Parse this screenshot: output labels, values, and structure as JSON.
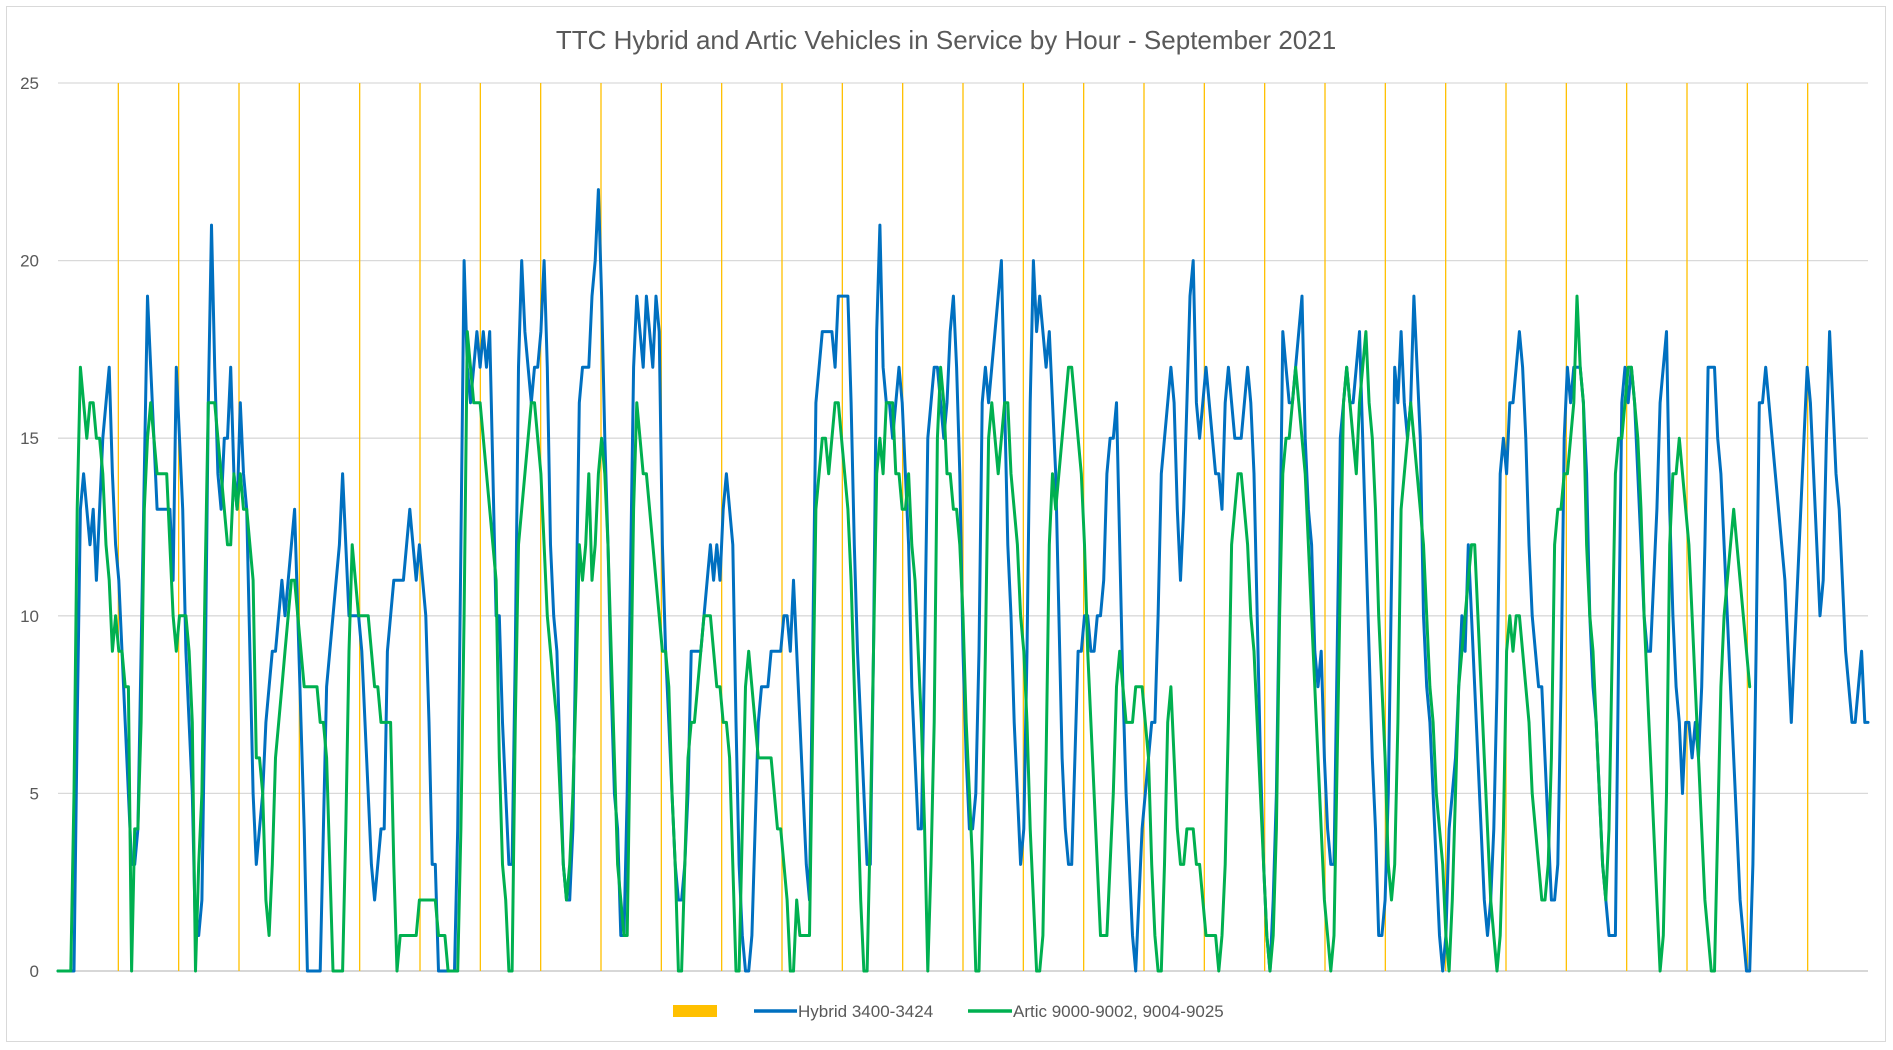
{
  "chart_data": {
    "type": "line",
    "title": "TTC Hybrid and Artic Vehicles in Service by Hour - September 2021",
    "xlabel": "",
    "ylabel": "",
    "ylim": [
      0,
      25
    ],
    "y_ticks": [
      0,
      5,
      10,
      15,
      20,
      25
    ],
    "grid": true,
    "legend_position": "bottom",
    "day_markers": {
      "name": "",
      "color": "#FFC000",
      "count": 29
    },
    "series": [
      {
        "name": "Hybrid 3400-3424",
        "color": "#0070C0",
        "values": [
          0,
          0,
          0,
          0,
          0,
          0,
          7,
          13,
          14,
          13,
          12,
          13,
          11,
          13,
          15,
          16,
          17,
          14,
          12,
          11,
          9,
          7,
          5,
          3,
          3,
          4,
          9,
          14,
          19,
          17,
          15,
          13,
          13,
          13,
          13,
          13,
          11,
          17,
          15,
          13,
          9,
          7,
          5,
          1,
          1,
          2,
          8,
          16,
          21,
          17,
          14,
          13,
          15,
          15,
          17,
          14,
          13,
          16,
          14,
          13,
          9,
          5,
          3,
          4,
          5,
          7,
          8,
          9,
          9,
          10,
          11,
          10,
          11,
          12,
          13,
          10,
          7,
          4,
          0,
          0,
          0,
          0,
          0,
          4,
          8,
          9,
          10,
          11,
          12,
          14,
          12,
          10,
          10,
          10,
          10,
          9,
          7,
          5,
          3,
          2,
          3,
          4,
          4,
          9,
          10,
          11,
          11,
          11,
          11,
          12,
          13,
          12,
          11,
          12,
          11,
          10,
          7,
          3,
          3,
          0,
          0,
          0,
          0,
          0,
          0,
          4,
          12,
          20,
          17,
          16,
          17,
          18,
          17,
          18,
          17,
          18,
          14,
          10,
          10,
          7,
          5,
          3,
          3,
          9,
          17,
          20,
          18,
          17,
          16,
          17,
          17,
          18,
          20,
          17,
          12,
          10,
          9,
          6,
          3,
          2,
          2,
          4,
          10,
          16,
          17,
          17,
          17,
          19,
          20,
          22,
          19,
          15,
          12,
          8,
          5,
          4,
          1,
          1,
          5,
          11,
          17,
          19,
          18,
          17,
          19,
          18,
          17,
          19,
          18,
          12,
          9,
          7,
          5,
          3,
          2,
          2,
          3,
          5,
          9,
          9,
          9,
          9,
          10,
          11,
          12,
          11,
          12,
          11,
          13,
          14,
          13,
          12,
          7,
          3,
          1,
          0,
          0,
          1,
          4,
          7,
          8,
          8,
          8,
          9,
          9,
          9,
          9,
          10,
          10,
          9,
          11,
          9,
          7,
          5,
          3,
          2,
          9,
          16,
          17,
          18,
          18,
          18,
          18,
          17,
          19,
          19,
          19,
          19,
          16,
          12,
          9,
          7,
          5,
          3,
          3,
          9,
          18,
          21,
          17,
          16,
          16,
          15,
          16,
          17,
          16,
          14,
          12,
          8,
          6,
          4,
          4,
          9,
          15,
          16,
          17,
          17,
          16,
          15,
          16,
          18,
          19,
          17,
          14,
          9,
          6,
          4,
          4,
          5,
          9,
          16,
          17,
          16,
          17,
          18,
          19,
          20,
          16,
          12,
          10,
          7,
          5,
          3,
          4,
          9,
          16,
          20,
          18,
          19,
          18,
          17,
          18,
          16,
          14,
          10,
          6,
          4,
          3,
          3,
          6,
          9,
          9,
          10,
          10,
          9,
          9,
          10,
          10,
          11,
          14,
          15,
          15,
          16,
          12,
          8,
          5,
          3,
          1,
          0,
          2,
          4,
          5,
          6,
          7,
          7,
          10,
          14,
          15,
          16,
          17,
          16,
          13,
          11,
          13,
          16,
          19,
          20,
          16,
          15,
          16,
          17,
          16,
          15,
          14,
          14,
          13,
          16,
          17,
          16,
          15,
          15,
          15,
          16,
          17,
          16,
          14,
          10,
          6,
          3,
          1,
          0,
          2,
          5,
          11,
          18,
          17,
          16,
          16,
          17,
          18,
          19,
          15,
          13,
          12,
          9,
          8,
          9,
          6,
          4,
          3,
          3,
          9,
          15,
          16,
          17,
          16,
          16,
          17,
          18,
          15,
          12,
          9,
          6,
          4,
          1,
          1,
          2,
          5,
          11,
          17,
          16,
          18,
          16,
          15,
          16,
          19,
          17,
          15,
          10,
          8,
          7,
          5,
          3,
          1,
          0,
          1,
          4,
          5,
          6,
          8,
          10,
          9,
          12,
          10,
          8,
          6,
          4,
          2,
          1,
          2,
          4,
          8,
          14,
          15,
          14,
          16,
          16,
          17,
          18,
          17,
          15,
          12,
          10,
          9,
          8,
          8,
          6,
          4,
          2,
          2,
          3,
          8,
          15,
          17,
          16,
          17,
          17,
          17,
          16,
          14,
          10,
          8,
          7,
          5,
          3,
          2,
          1,
          1,
          1,
          9,
          16,
          17,
          16,
          17,
          16,
          14,
          12,
          10,
          9,
          9,
          11,
          13,
          16,
          17,
          18,
          13,
          10,
          8,
          7,
          5,
          7,
          7,
          6,
          7,
          6,
          8,
          12,
          17,
          17,
          17,
          15,
          14,
          12,
          10,
          8,
          6,
          4,
          2,
          1,
          0,
          0,
          3,
          9,
          16,
          16,
          17,
          16,
          15,
          14,
          13,
          12,
          11,
          9,
          7,
          9,
          11,
          13,
          15,
          17,
          16,
          14,
          12,
          10,
          11,
          15,
          18,
          16,
          14,
          13,
          11,
          9,
          8,
          7,
          7,
          8,
          9,
          7,
          7
        ]
      },
      {
        "name": "Artic 9000-9002, 9004-9025",
        "color": "#00B050",
        "values": [
          0,
          0,
          0,
          0,
          0,
          5,
          13,
          17,
          16,
          15,
          16,
          16,
          15,
          15,
          14,
          12,
          11,
          9,
          10,
          9,
          9,
          8,
          8,
          0,
          4,
          4,
          7,
          13,
          15,
          16,
          15,
          14,
          14,
          14,
          14,
          12,
          10,
          9,
          10,
          10,
          10,
          9,
          7,
          0,
          3,
          5,
          11,
          16,
          16,
          16,
          15,
          14,
          13,
          12,
          12,
          14,
          13,
          14,
          13,
          13,
          12,
          11,
          6,
          6,
          5,
          2,
          1,
          3,
          6,
          7,
          8,
          9,
          10,
          11,
          11,
          10,
          9,
          8,
          8,
          8,
          8,
          8,
          7,
          7,
          6,
          3,
          0,
          0,
          0,
          0,
          4,
          9,
          12,
          11,
          10,
          10,
          10,
          10,
          9,
          8,
          8,
          7,
          7,
          7,
          7,
          3,
          0,
          1,
          1,
          1,
          1,
          1,
          1,
          2,
          2,
          2,
          2,
          2,
          2,
          1,
          1,
          1,
          0,
          0,
          0,
          0,
          4,
          10,
          18,
          17,
          16,
          16,
          16,
          15,
          14,
          13,
          12,
          11,
          6,
          3,
          2,
          0,
          0,
          7,
          12,
          13,
          14,
          15,
          16,
          16,
          15,
          14,
          12,
          10,
          9,
          8,
          7,
          5,
          3,
          2,
          3,
          5,
          8,
          12,
          11,
          12,
          14,
          11,
          12,
          14,
          15,
          14,
          12,
          9,
          6,
          3,
          2,
          1,
          1,
          7,
          13,
          16,
          15,
          14,
          14,
          13,
          12,
          11,
          10,
          9,
          9,
          8,
          5,
          3,
          0,
          0,
          3,
          6,
          7,
          7,
          8,
          9,
          10,
          10,
          10,
          9,
          8,
          8,
          7,
          7,
          6,
          3,
          0,
          0,
          4,
          8,
          9,
          8,
          7,
          6,
          6,
          6,
          6,
          6,
          5,
          4,
          4,
          3,
          2,
          0,
          0,
          2,
          1,
          1,
          1,
          1,
          7,
          13,
          14,
          15,
          15,
          14,
          15,
          16,
          16,
          15,
          14,
          13,
          11,
          8,
          5,
          2,
          0,
          0,
          4,
          9,
          14,
          15,
          14,
          16,
          16,
          16,
          14,
          14,
          13,
          13,
          14,
          12,
          11,
          9,
          7,
          4,
          0,
          3,
          7,
          15,
          17,
          16,
          14,
          14,
          13,
          13,
          12,
          10,
          7,
          5,
          3,
          0,
          0,
          4,
          9,
          15,
          16,
          15,
          14,
          15,
          16,
          16,
          14,
          13,
          12,
          10,
          9,
          7,
          4,
          2,
          0,
          0,
          1,
          6,
          12,
          14,
          13,
          14,
          15,
          16,
          17,
          17,
          16,
          15,
          14,
          12,
          9,
          7,
          5,
          3,
          1,
          1,
          1,
          3,
          5,
          8,
          9,
          8,
          7,
          7,
          7,
          8,
          8,
          8,
          7,
          6,
          3,
          1,
          0,
          0,
          3,
          7,
          8,
          6,
          4,
          3,
          3,
          4,
          4,
          4,
          3,
          3,
          2,
          1,
          1,
          1,
          1,
          0,
          1,
          3,
          7,
          12,
          13,
          14,
          14,
          13,
          12,
          10,
          9,
          7,
          5,
          3,
          1,
          0,
          1,
          4,
          10,
          14,
          15,
          15,
          16,
          17,
          16,
          15,
          14,
          12,
          10,
          8,
          6,
          4,
          2,
          1,
          0,
          1,
          6,
          11,
          16,
          17,
          16,
          15,
          14,
          16,
          17,
          18,
          16,
          15,
          13,
          10,
          8,
          6,
          3,
          2,
          3,
          7,
          13,
          14,
          15,
          16,
          15,
          14,
          13,
          12,
          10,
          8,
          7,
          5,
          4,
          3,
          1,
          0,
          2,
          5,
          8,
          9,
          10,
          11,
          12,
          12,
          10,
          8,
          6,
          4,
          2,
          1,
          0,
          1,
          4,
          9,
          10,
          9,
          10,
          10,
          9,
          8,
          7,
          5,
          4,
          3,
          2,
          2,
          3,
          6,
          12,
          13,
          13,
          14,
          14,
          15,
          16,
          19,
          17,
          16,
          12,
          10,
          9,
          7,
          5,
          3,
          2,
          4,
          9,
          14,
          15,
          15,
          16,
          17,
          17,
          16,
          15,
          13,
          10,
          8,
          6,
          4,
          2,
          0,
          1,
          5,
          12,
          14,
          14,
          15,
          14,
          13,
          12,
          10,
          8,
          6,
          4,
          2,
          1,
          0,
          0,
          4,
          8,
          10,
          11,
          12,
          13,
          12,
          11,
          10,
          9,
          8
        ]
      }
    ]
  }
}
